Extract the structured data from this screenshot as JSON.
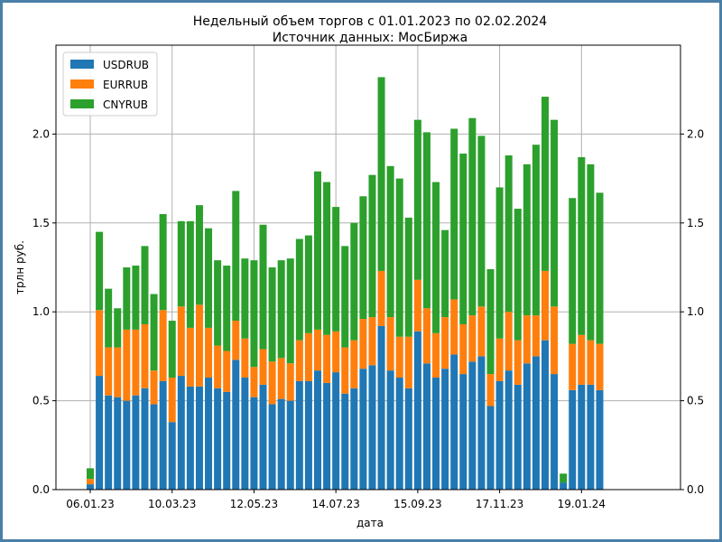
{
  "chart_data": {
    "type": "bar",
    "stacked": true,
    "title": "Недельный объем торгов с 01.01.2023 по 02.02.2024",
    "subtitle": "Источник данных: МосБиржа",
    "xlabel": "дата",
    "ylabel": "трлн руб.",
    "ylim": [
      0,
      2.5
    ],
    "yticks": [
      "0.0",
      "0.5",
      "1.0",
      "1.5",
      "2.0"
    ],
    "xtick_labels": [
      "06.01.23",
      "10.03.23",
      "12.05.23",
      "14.07.23",
      "15.09.23",
      "17.11.23",
      "19.01.24"
    ],
    "xtick_indices": [
      0,
      9,
      18,
      27,
      36,
      45,
      54
    ],
    "legend": [
      "USDRUB",
      "EURRUB",
      "CNYRUB"
    ],
    "legend_position": "top-left",
    "grid": true,
    "colors": {
      "USDRUB": "#1f77b4",
      "EURRUB": "#ff7f0e",
      "CNYRUB": "#2ca02c"
    },
    "series": [
      {
        "name": "USDRUB",
        "values": [
          0.03,
          0.64,
          0.53,
          0.52,
          0.5,
          0.53,
          0.57,
          0.48,
          0.61,
          0.38,
          0.64,
          0.58,
          0.58,
          0.63,
          0.57,
          0.55,
          0.73,
          0.63,
          0.52,
          0.59,
          0.48,
          0.51,
          0.5,
          0.61,
          0.61,
          0.67,
          0.6,
          0.66,
          0.54,
          0.57,
          0.68,
          0.7,
          0.92,
          0.67,
          0.63,
          0.57,
          0.89,
          0.71,
          0.63,
          0.68,
          0.76,
          0.65,
          0.72,
          0.75,
          0.47,
          0.61,
          0.67,
          0.59,
          0.71,
          0.75,
          0.84,
          0.65,
          0.04,
          0.56,
          0.59,
          0.59,
          0.56
        ]
      },
      {
        "name": "EURRUB",
        "values": [
          0.03,
          0.37,
          0.27,
          0.28,
          0.4,
          0.37,
          0.36,
          0.19,
          0.4,
          0.25,
          0.39,
          0.33,
          0.46,
          0.28,
          0.24,
          0.23,
          0.22,
          0.22,
          0.17,
          0.2,
          0.24,
          0.23,
          0.21,
          0.23,
          0.27,
          0.23,
          0.27,
          0.23,
          0.26,
          0.27,
          0.28,
          0.27,
          0.31,
          0.3,
          0.23,
          0.29,
          0.29,
          0.31,
          0.25,
          0.29,
          0.31,
          0.28,
          0.26,
          0.28,
          0.18,
          0.24,
          0.33,
          0.25,
          0.27,
          0.23,
          0.39,
          0.38,
          0.0,
          0.26,
          0.28,
          0.25,
          0.26
        ]
      },
      {
        "name": "CNYRUB",
        "values": [
          0.06,
          0.44,
          0.33,
          0.22,
          0.35,
          0.36,
          0.44,
          0.43,
          0.54,
          0.32,
          0.48,
          0.6,
          0.56,
          0.56,
          0.48,
          0.48,
          0.73,
          0.45,
          0.6,
          0.7,
          0.53,
          0.55,
          0.59,
          0.57,
          0.55,
          0.89,
          0.86,
          0.7,
          0.57,
          0.66,
          0.69,
          0.8,
          1.09,
          0.85,
          0.89,
          0.67,
          0.9,
          0.99,
          0.85,
          0.49,
          0.96,
          0.96,
          1.11,
          0.96,
          0.59,
          0.85,
          0.88,
          0.74,
          0.85,
          0.96,
          0.98,
          1.05,
          0.05,
          0.82,
          1.0,
          0.99,
          0.85
        ]
      }
    ]
  }
}
